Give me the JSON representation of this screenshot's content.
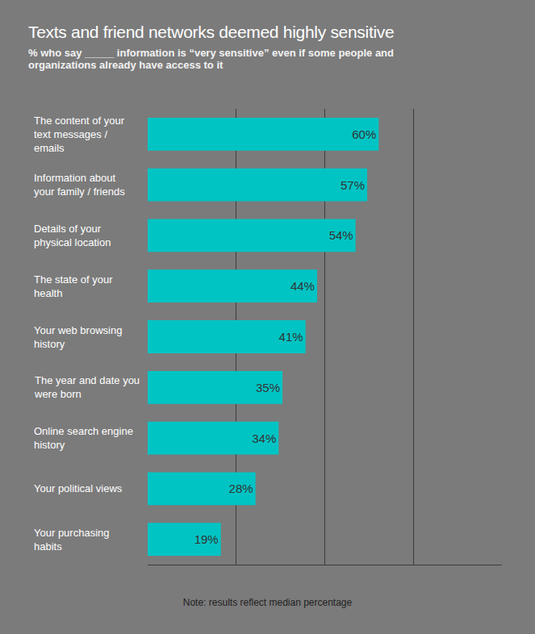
{
  "chart_data": {
    "type": "bar",
    "orientation": "horizontal",
    "title": "Texts and friend networks deemed highly sensitive",
    "subtitle": "% who say _____ information is “very sensitive” even if some people and organizations already have access to it",
    "annotations": [
      "Note: results reflect median percentage"
    ],
    "categories": [
      "The content of your text messages / emails",
      "Information about your family / friends",
      "Details of your physical location",
      "The state of your health",
      "Your web browsing history",
      "The year and date you were born",
      "Online search engine history",
      "Your political views",
      "Your purchasing habits"
    ],
    "values": [
      60,
      57,
      54,
      44,
      41,
      35,
      34,
      28,
      19
    ],
    "value_labels": [
      "60%",
      "57%",
      "54%",
      "44%",
      "41%",
      "35%",
      "34%",
      "28%",
      "19%"
    ],
    "color": "#00c4c4",
    "xlim": [
      0,
      92
    ],
    "xticks": [
      0,
      23,
      46,
      69,
      92
    ],
    "grid": true,
    "data_labels": true,
    "tick_labels": "y"
  }
}
